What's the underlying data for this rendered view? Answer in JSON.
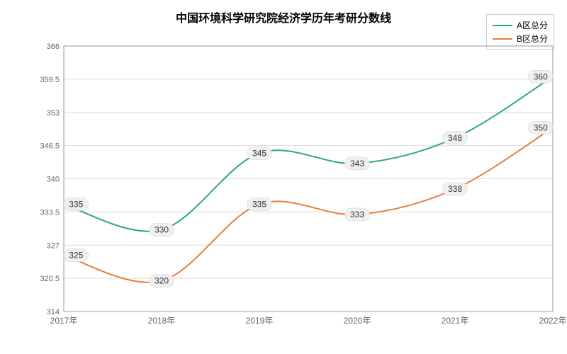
{
  "chart": {
    "type": "line",
    "title": "中国环境科学研究院经济学历年考研分数线",
    "title_fontsize": 16,
    "title_fontweight": "bold",
    "background_color": "#ffffff",
    "plot_background": "#ffffff",
    "grid_color": "#dddddd",
    "axis_color": "#999999",
    "label_color": "#666666",
    "xlabels": [
      "2017年",
      "2018年",
      "2019年",
      "2020年",
      "2021年",
      "2022年"
    ],
    "ylim": [
      314,
      366
    ],
    "yticks": [
      314,
      320.5,
      327,
      333.5,
      340,
      346.5,
      353,
      359.5,
      366
    ],
    "ytick_labels": [
      "314",
      "320.5",
      "327",
      "333.5",
      "340",
      "346.5",
      "353",
      "359.5",
      "366"
    ],
    "legend": {
      "position": "top-right",
      "items": [
        {
          "label": "A区总分",
          "color": "#2ca58d"
        },
        {
          "label": "B区总分",
          "color": "#e87d3e"
        }
      ]
    },
    "series": [
      {
        "name": "A区总分",
        "color": "#2ca58d",
        "line_width": 2,
        "smooth": true,
        "values": [
          335,
          330,
          345,
          343,
          348,
          360
        ],
        "label_bg": "#f0f0f0"
      },
      {
        "name": "B区总分",
        "color": "#e87d3e",
        "line_width": 2,
        "smooth": true,
        "values": [
          325,
          320,
          335,
          333,
          338,
          350
        ],
        "label_bg": "#f0f0f0"
      }
    ]
  }
}
